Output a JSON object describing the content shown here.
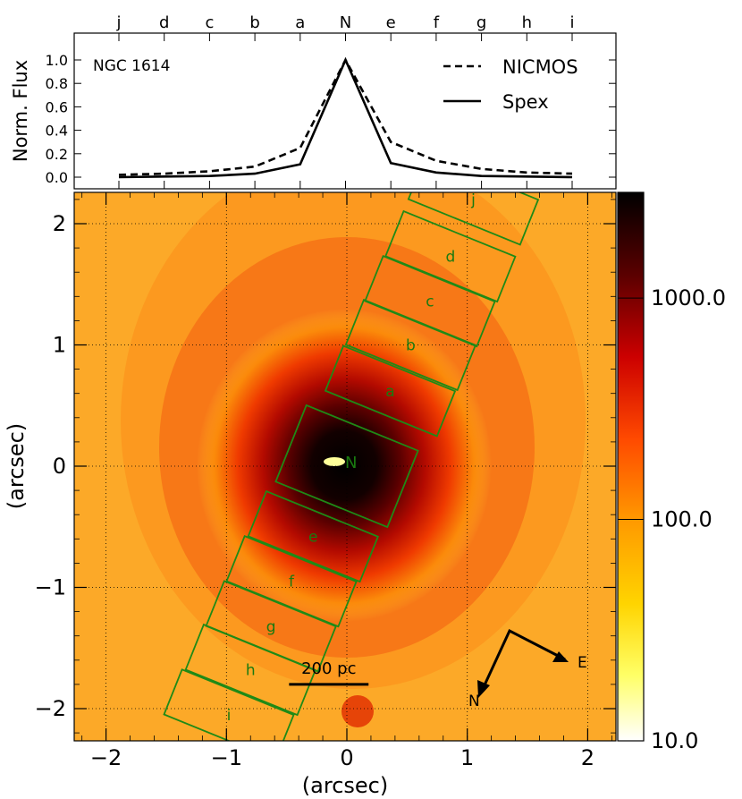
{
  "chart_data": [
    {
      "type": "line",
      "panel": "flux-profile",
      "galaxy_label": "NGC 1614",
      "ylabel": "Norm. Flux",
      "categories": [
        "j",
        "d",
        "c",
        "b",
        "a",
        "N",
        "e",
        "f",
        "g",
        "h",
        "i"
      ],
      "yticks": [
        "0.0",
        "0.2",
        "0.4",
        "0.6",
        "0.8",
        "1.0"
      ],
      "ylim": [
        -0.08,
        1.18
      ],
      "legend_position": "top-right",
      "series": [
        {
          "name": "NICMOS",
          "style": "dashed",
          "values": [
            0.02,
            0.03,
            0.05,
            0.09,
            0.25,
            1.0,
            0.3,
            0.14,
            0.07,
            0.04,
            0.03
          ]
        },
        {
          "name": "Spex",
          "style": "solid",
          "values": [
            0.0,
            0.005,
            0.01,
            0.03,
            0.11,
            1.0,
            0.12,
            0.04,
            0.01,
            0.005,
            0.0
          ]
        }
      ]
    },
    {
      "type": "heatmap",
      "panel": "image",
      "xlabel": "(arcsec)",
      "ylabel": "(arcsec)",
      "xlim": [
        -2.3,
        2.3
      ],
      "ylim": [
        -2.25,
        2.25
      ],
      "xticks": [
        {
          "value": -2,
          "label": "−2"
        },
        {
          "value": -1,
          "label": "−1"
        },
        {
          "value": 0,
          "label": "0"
        },
        {
          "value": 1,
          "label": "1"
        },
        {
          "value": 2,
          "label": "2"
        }
      ],
      "yticks": [
        {
          "value": 2,
          "label": "2"
        },
        {
          "value": 1,
          "label": "1"
        },
        {
          "value": 0,
          "label": "0"
        },
        {
          "value": -1,
          "label": "−1"
        },
        {
          "value": -2,
          "label": "−2"
        }
      ],
      "grid": true,
      "nucleus_label": "N",
      "slit": {
        "pa_deg": 22,
        "width_arcsec": 1.0,
        "apertures": [
          {
            "label": "j",
            "center": [
              1.05,
              2.2
            ]
          },
          {
            "label": "d",
            "center": [
              0.86,
              1.73
            ]
          },
          {
            "label": "c",
            "center": [
              0.69,
              1.36
            ]
          },
          {
            "label": "b",
            "center": [
              0.53,
              1.0
            ]
          },
          {
            "label": "a",
            "center": [
              0.36,
              0.62
            ]
          },
          {
            "label": "e",
            "center": [
              -0.28,
              -0.58
            ]
          },
          {
            "label": "f",
            "center": [
              -0.46,
              -0.95
            ]
          },
          {
            "label": "g",
            "center": [
              -0.63,
              -1.32
            ]
          },
          {
            "label": "h",
            "center": [
              -0.8,
              -1.68
            ]
          },
          {
            "label": "i",
            "center": [
              -0.98,
              -2.05
            ]
          }
        ]
      },
      "scale_bar": {
        "label": "200 pc",
        "x_start": -0.48,
        "x_end": 0.18,
        "y": -1.8
      },
      "compass": {
        "north_label": "N",
        "east_label": "E"
      },
      "colorbar": {
        "scale": "log",
        "range": [
          10.0,
          3000.0
        ],
        "ticks": [
          {
            "value": 1000.0,
            "label": "1000.0"
          },
          {
            "value": 100.0,
            "label": "100.0"
          },
          {
            "value": 10.0,
            "label": "10.0"
          }
        ],
        "colors": [
          "#ffffff",
          "#ffff00",
          "#ffb300",
          "#ff6a00",
          "#ff1a00",
          "#b00000",
          "#5a0000",
          "#000000"
        ]
      }
    }
  ]
}
